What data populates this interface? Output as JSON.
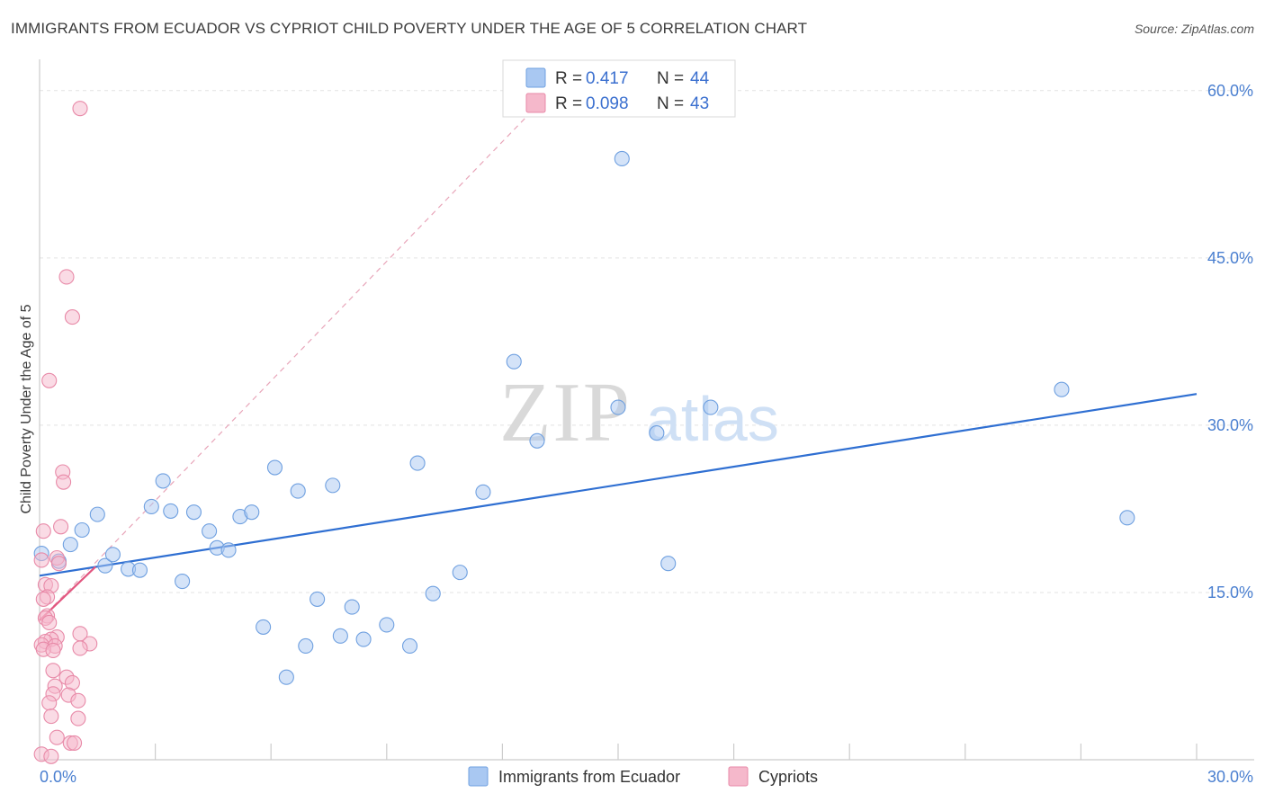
{
  "chart_data": {
    "type": "scatter",
    "title": "IMMIGRANTS FROM ECUADOR VS CYPRIOT CHILD POVERTY UNDER THE AGE OF 5 CORRELATION CHART",
    "source": "Source: ZipAtlas.com",
    "xlabel": "",
    "ylabel": "Child Poverty Under the Age of 5",
    "xlim": [
      0,
      30
    ],
    "ylim": [
      0,
      62
    ],
    "x_tick_labels": [
      {
        "value": 0,
        "label": "0.0%"
      },
      {
        "value": 30,
        "label": "30.0%"
      }
    ],
    "y_tick_labels": [
      {
        "value": 15,
        "label": "15.0%"
      },
      {
        "value": 30,
        "label": "30.0%"
      },
      {
        "value": 45,
        "label": "45.0%"
      },
      {
        "value": 60,
        "label": "60.0%"
      }
    ],
    "legend": {
      "entries": [
        {
          "r_label": "R =",
          "r_value": "0.417",
          "n_label": "N =",
          "n_value": "44",
          "color": "#a9c8f2"
        },
        {
          "r_label": "R =",
          "r_value": "0.098",
          "n_label": "N =",
          "n_value": "43",
          "color": "#f5b8cb"
        }
      ]
    },
    "series": [
      {
        "name": "Immigrants from Ecuador",
        "color": "#a9c8f2",
        "stroke": "#6fa0e0",
        "trend": {
          "x": [
            0,
            30
          ],
          "y": [
            16.5,
            32.8
          ],
          "color": "#2f6fd2"
        },
        "points": [
          [
            0.05,
            18.5
          ],
          [
            0.5,
            17.8
          ],
          [
            0.8,
            19.3
          ],
          [
            1.1,
            20.6
          ],
          [
            1.5,
            22.0
          ],
          [
            1.7,
            17.4
          ],
          [
            1.9,
            18.4
          ],
          [
            2.3,
            17.1
          ],
          [
            2.6,
            17.0
          ],
          [
            2.9,
            22.7
          ],
          [
            3.2,
            25.0
          ],
          [
            3.4,
            22.3
          ],
          [
            3.7,
            16.0
          ],
          [
            4.0,
            22.2
          ],
          [
            4.4,
            20.5
          ],
          [
            4.6,
            19.0
          ],
          [
            4.9,
            18.8
          ],
          [
            5.2,
            21.8
          ],
          [
            5.5,
            22.2
          ],
          [
            5.8,
            11.9
          ],
          [
            6.1,
            26.2
          ],
          [
            6.4,
            7.4
          ],
          [
            6.7,
            24.1
          ],
          [
            6.9,
            10.2
          ],
          [
            7.2,
            14.4
          ],
          [
            7.6,
            24.6
          ],
          [
            7.8,
            11.1
          ],
          [
            8.1,
            13.7
          ],
          [
            8.4,
            10.8
          ],
          [
            9.0,
            12.1
          ],
          [
            9.6,
            10.2
          ],
          [
            9.8,
            26.6
          ],
          [
            10.2,
            14.9
          ],
          [
            10.9,
            16.8
          ],
          [
            11.5,
            24.0
          ],
          [
            12.3,
            35.7
          ],
          [
            12.9,
            28.6
          ],
          [
            15.0,
            31.6
          ],
          [
            15.1,
            53.9
          ],
          [
            16.0,
            29.3
          ],
          [
            16.3,
            17.6
          ],
          [
            17.4,
            31.6
          ],
          [
            26.5,
            33.2
          ],
          [
            28.2,
            21.7
          ]
        ]
      },
      {
        "name": "Cypriots",
        "color": "#f5b8cb",
        "stroke": "#e88aa8",
        "trend": {
          "x": [
            0,
            1.45
          ],
          "y": [
            12.5,
            17.3
          ],
          "color": "#e2567f"
        },
        "trend_dashed": {
          "x": [
            0,
            13
          ],
          "y": [
            12.5,
            59.0
          ],
          "color": "#e8a5b9"
        },
        "points": [
          [
            1.05,
            58.4
          ],
          [
            0.7,
            43.3
          ],
          [
            0.85,
            39.7
          ],
          [
            0.25,
            34.0
          ],
          [
            0.6,
            25.8
          ],
          [
            0.62,
            24.9
          ],
          [
            0.55,
            20.9
          ],
          [
            0.1,
            20.5
          ],
          [
            0.45,
            18.1
          ],
          [
            0.5,
            17.6
          ],
          [
            0.05,
            17.9
          ],
          [
            0.15,
            15.7
          ],
          [
            0.3,
            15.6
          ],
          [
            0.2,
            14.6
          ],
          [
            0.1,
            14.4
          ],
          [
            0.2,
            12.9
          ],
          [
            0.15,
            12.7
          ],
          [
            0.25,
            12.3
          ],
          [
            1.05,
            11.3
          ],
          [
            0.45,
            11.0
          ],
          [
            0.3,
            10.8
          ],
          [
            0.15,
            10.6
          ],
          [
            0.05,
            10.3
          ],
          [
            0.4,
            10.2
          ],
          [
            0.1,
            9.9
          ],
          [
            0.35,
            9.8
          ],
          [
            1.3,
            10.4
          ],
          [
            1.05,
            10.0
          ],
          [
            0.35,
            8.0
          ],
          [
            0.7,
            7.4
          ],
          [
            0.85,
            6.9
          ],
          [
            0.4,
            6.6
          ],
          [
            0.35,
            5.9
          ],
          [
            0.75,
            5.8
          ],
          [
            1.0,
            5.3
          ],
          [
            0.25,
            5.1
          ],
          [
            0.3,
            3.9
          ],
          [
            1.0,
            3.7
          ],
          [
            0.45,
            2.0
          ],
          [
            0.8,
            1.5
          ],
          [
            0.9,
            1.5
          ],
          [
            0.05,
            0.5
          ],
          [
            0.3,
            0.3
          ]
        ]
      }
    ]
  }
}
